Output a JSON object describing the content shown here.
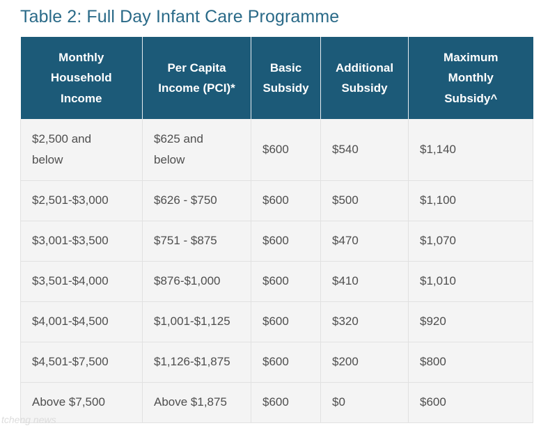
{
  "page": {
    "title": "Table 2: Full Day Infant Care Programme",
    "watermark_left": "tcheng news"
  },
  "table": {
    "headers": [
      [
        "Monthly",
        "Household",
        "Income"
      ],
      [
        "Per Capita",
        "Income (PCI)*"
      ],
      [
        "Basic",
        "Subsidy"
      ],
      [
        "Additional",
        "Subsidy"
      ],
      [
        "Maximum",
        "Monthly",
        "Subsidy^"
      ]
    ],
    "rows": [
      [
        [
          "$2,500 and",
          "below"
        ],
        [
          "$625 and",
          "below"
        ],
        [
          "$600"
        ],
        [
          "$540"
        ],
        [
          "$1,140"
        ]
      ],
      [
        [
          "$2,501-$3,000"
        ],
        [
          "$626 - $750"
        ],
        [
          "$600"
        ],
        [
          "$500"
        ],
        [
          "$1,100"
        ]
      ],
      [
        [
          "$3,001-$3,500"
        ],
        [
          "$751 - $875"
        ],
        [
          "$600"
        ],
        [
          "$470"
        ],
        [
          "$1,070"
        ]
      ],
      [
        [
          "$3,501-$4,000"
        ],
        [
          "$876-$1,000"
        ],
        [
          "$600"
        ],
        [
          "$410"
        ],
        [
          "$1,010"
        ]
      ],
      [
        [
          "$4,001-$4,500"
        ],
        [
          "$1,001-$1,125"
        ],
        [
          "$600"
        ],
        [
          "$320"
        ],
        [
          "$920"
        ]
      ],
      [
        [
          "$4,501-$7,500"
        ],
        [
          "$1,126-$1,875"
        ],
        [
          "$600"
        ],
        [
          "$200"
        ],
        [
          "$800"
        ]
      ],
      [
        [
          "Above $7,500"
        ],
        [
          "Above $1,875"
        ],
        [
          "$600"
        ],
        [
          "$0"
        ],
        [
          "$600"
        ]
      ]
    ]
  },
  "colors": {
    "title": "#2a6a88",
    "header_background": "#1c5a78",
    "header_text": "#ffffff",
    "row_background": "#f4f4f4",
    "cell_text": "#4e4e4e"
  }
}
